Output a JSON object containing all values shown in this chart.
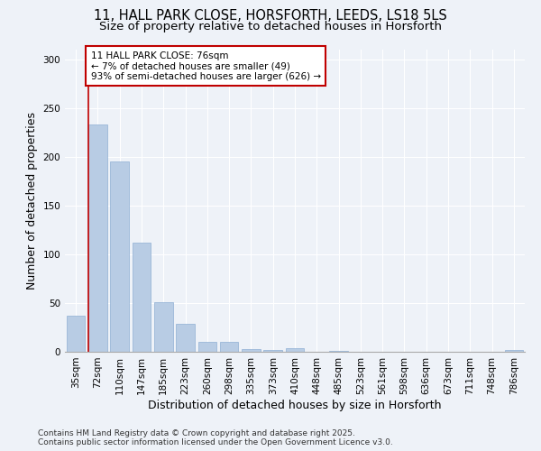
{
  "title_line1": "11, HALL PARK CLOSE, HORSFORTH, LEEDS, LS18 5LS",
  "title_line2": "Size of property relative to detached houses in Horsforth",
  "xlabel": "Distribution of detached houses by size in Horsforth",
  "ylabel": "Number of detached properties",
  "categories": [
    "35sqm",
    "72sqm",
    "110sqm",
    "147sqm",
    "185sqm",
    "223sqm",
    "260sqm",
    "298sqm",
    "335sqm",
    "373sqm",
    "410sqm",
    "448sqm",
    "485sqm",
    "523sqm",
    "561sqm",
    "598sqm",
    "636sqm",
    "673sqm",
    "711sqm",
    "748sqm",
    "786sqm"
  ],
  "values": [
    37,
    233,
    195,
    112,
    51,
    29,
    10,
    10,
    3,
    2,
    4,
    0,
    1,
    0,
    0,
    0,
    0,
    0,
    0,
    0,
    2
  ],
  "bar_color": "#b8cce4",
  "highlight_bar_index": 1,
  "highlight_color": "#c00000",
  "annotation_box_color": "#c00000",
  "annotation_line1": "11 HALL PARK CLOSE: 76sqm",
  "annotation_line2": "← 7% of detached houses are smaller (49)",
  "annotation_line3": "93% of semi-detached houses are larger (626) →",
  "ylim": [
    0,
    310
  ],
  "yticks": [
    0,
    50,
    100,
    150,
    200,
    250,
    300
  ],
  "background_color": "#eef2f8",
  "plot_bg_color": "#eef2f8",
  "grid_color": "#ffffff",
  "footer_line1": "Contains HM Land Registry data © Crown copyright and database right 2025.",
  "footer_line2": "Contains public sector information licensed under the Open Government Licence v3.0.",
  "title_fontsize": 10.5,
  "subtitle_fontsize": 9.5,
  "axis_label_fontsize": 9,
  "tick_fontsize": 7.5,
  "annotation_fontsize": 7.5,
  "footer_fontsize": 6.5
}
